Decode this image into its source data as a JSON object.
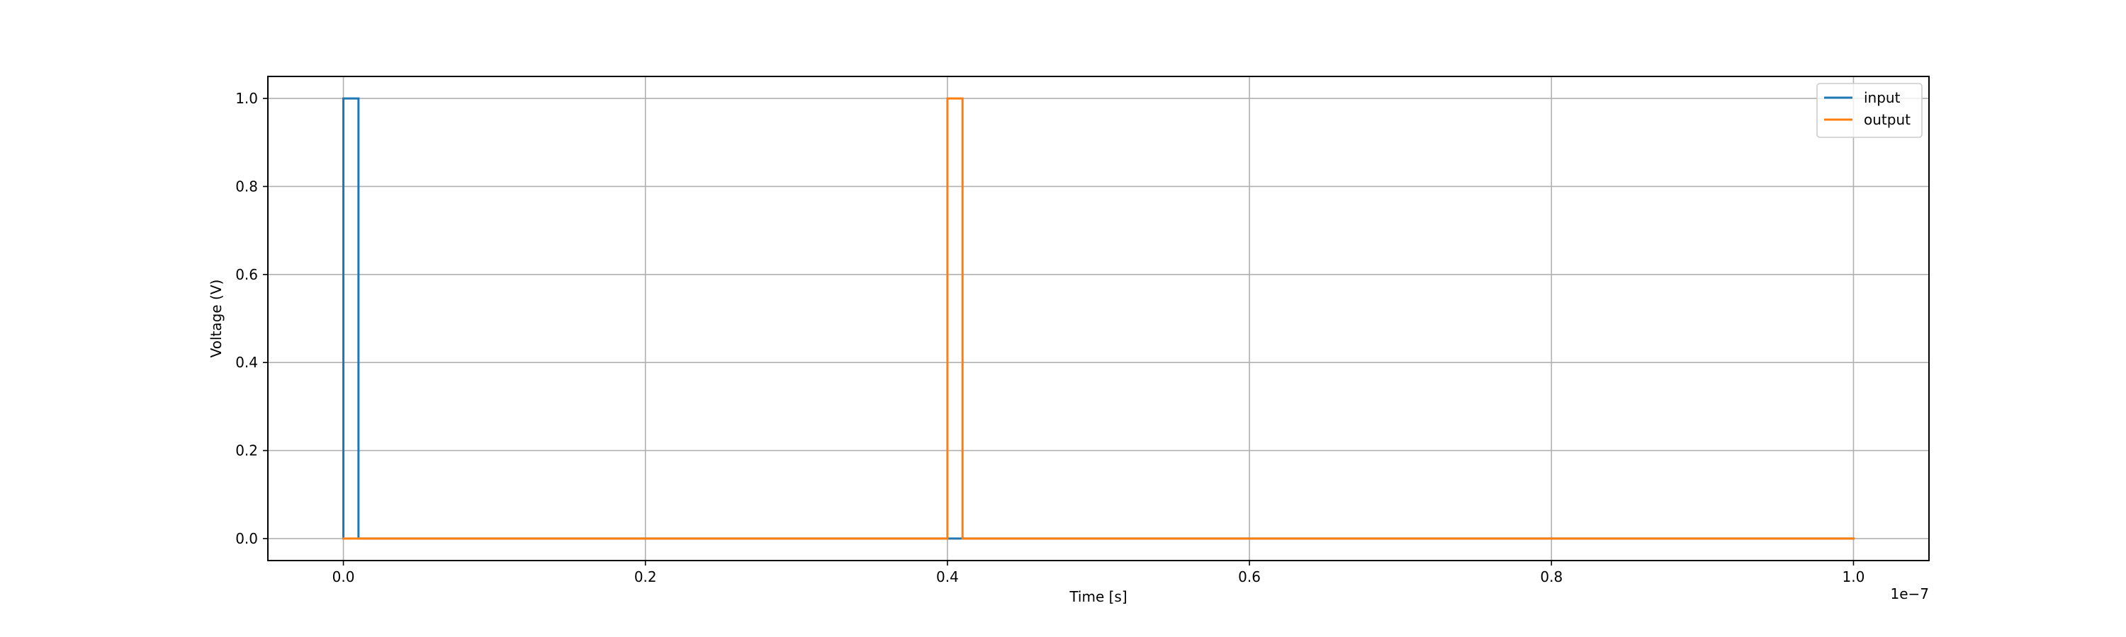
{
  "chart_data": {
    "type": "line",
    "title": "",
    "xlabel": "Time [s]",
    "ylabel": "Voltage (V)",
    "x_offset_label": "1e−7",
    "xlim": [
      -0.05,
      1.05
    ],
    "ylim": [
      -0.05,
      1.05
    ],
    "x_ticks": [
      0.0,
      0.2,
      0.4,
      0.6,
      0.8,
      1.0
    ],
    "x_tick_labels": [
      "0.0",
      "0.2",
      "0.4",
      "0.6",
      "0.8",
      "1.0"
    ],
    "y_ticks": [
      0.0,
      0.2,
      0.4,
      0.6,
      0.8,
      1.0
    ],
    "y_tick_labels": [
      "0.0",
      "0.2",
      "0.4",
      "0.6",
      "0.8",
      "1.0"
    ],
    "grid": true,
    "legend_position": "top-right",
    "series": [
      {
        "name": "input",
        "color": "#1f77b4",
        "x": [
          0.0,
          0.0,
          0.01,
          0.01,
          1.0
        ],
        "y": [
          0.0,
          1.0,
          1.0,
          0.0,
          0.0
        ]
      },
      {
        "name": "output",
        "color": "#ff7f0e",
        "x": [
          0.0,
          0.4,
          0.4,
          0.41,
          0.41,
          1.0
        ],
        "y": [
          0.0,
          0.0,
          1.0,
          1.0,
          0.0,
          0.0
        ]
      }
    ]
  }
}
